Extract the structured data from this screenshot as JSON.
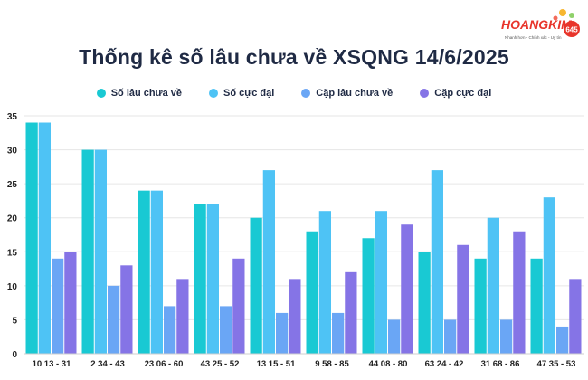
{
  "logo": {
    "brand_text": "HOANGKIM",
    "badge_text": "645",
    "tagline": "Nhanh hơn - Chính xác - Uy tín"
  },
  "colors": {
    "series": [
      "#19c9d3",
      "#4ec3f5",
      "#6aa6f5",
      "#8574e6"
    ],
    "title": "#1f2a44",
    "grid": "#e6e6e6",
    "logo_red": "#e8352b"
  },
  "chart_data": {
    "type": "bar",
    "title": "Thống kê số lâu chưa về XSQNG 14/6/2025",
    "xlabel": "",
    "ylabel": "",
    "ylim": [
      0,
      35
    ],
    "yticks": [
      0,
      5,
      10,
      15,
      20,
      25,
      30,
      35
    ],
    "grid": true,
    "legend_position": "top",
    "categories": [
      "10 13 - 31",
      "2 34 - 43",
      "23 06 - 60",
      "43 25 - 52",
      "13 15 - 51",
      "9 58 - 85",
      "44 08 - 80",
      "63 24 - 42",
      "31 68 - 86",
      "47 35 - 53"
    ],
    "series": [
      {
        "name": "Số lâu chưa về",
        "values": [
          34,
          30,
          24,
          22,
          20,
          18,
          17,
          15,
          14,
          14
        ]
      },
      {
        "name": "Số cực đại",
        "values": [
          34,
          30,
          24,
          22,
          27,
          21,
          21,
          27,
          20,
          23
        ]
      },
      {
        "name": "Cặp lâu chưa về",
        "values": [
          14,
          10,
          7,
          7,
          6,
          6,
          5,
          5,
          5,
          4
        ]
      },
      {
        "name": "Cặp cực đại",
        "values": [
          15,
          13,
          11,
          14,
          11,
          12,
          19,
          16,
          18,
          11
        ]
      }
    ]
  }
}
